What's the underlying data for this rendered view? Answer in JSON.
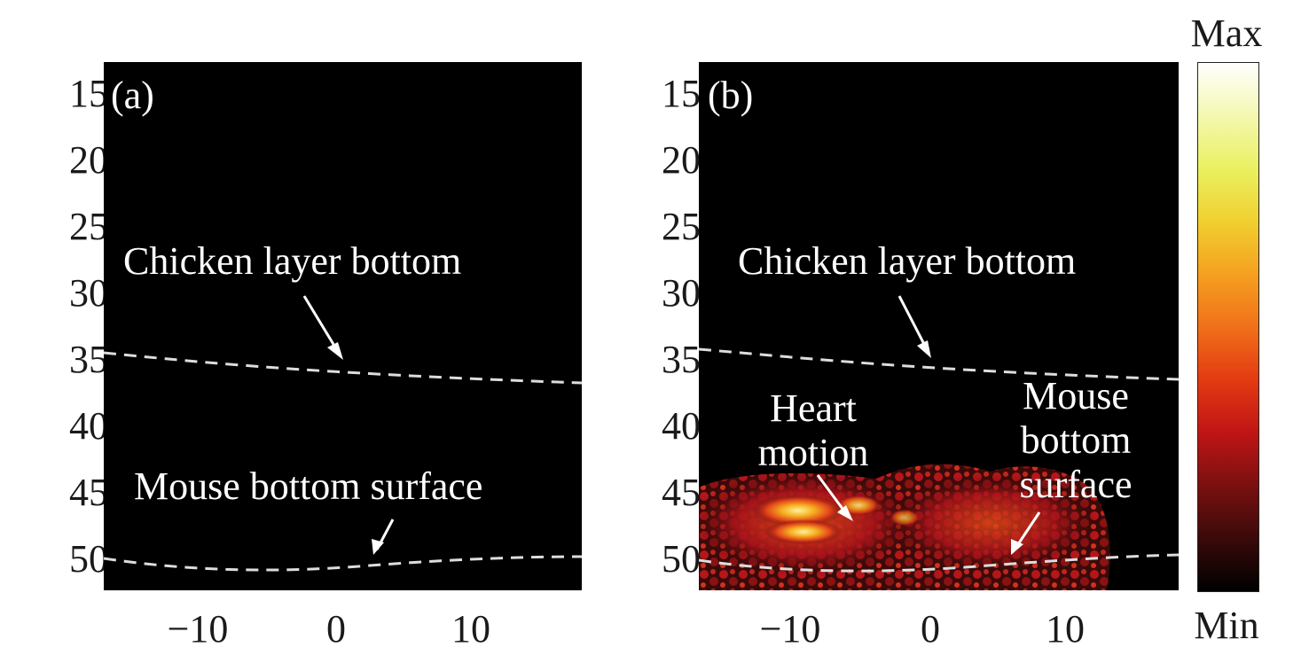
{
  "y_ticks": [
    "15",
    "20",
    "25",
    "30",
    "35",
    "40",
    "45",
    "50"
  ],
  "x_ticks": [
    "−10",
    "0",
    "10"
  ],
  "panel_a": {
    "label": "(a)",
    "annotations": {
      "chicken": "Chicken layer bottom",
      "mouse": "Mouse bottom surface"
    }
  },
  "panel_b": {
    "label": "(b)",
    "annotations": {
      "chicken": "Chicken layer bottom",
      "heart_line1": "Heart",
      "heart_line2": "motion",
      "mouse_line1": "Mouse",
      "mouse_line2": "bottom",
      "mouse_line3": "surface"
    }
  },
  "colorbar": {
    "max_label": "Max",
    "min_label": "Min",
    "colors": [
      "#000000",
      "#3a0a0a",
      "#7a1010",
      "#c01515",
      "#e33a12",
      "#f0701a",
      "#f5a020",
      "#f0d030",
      "#eaf060",
      "#f4f8b0",
      "#ffffff"
    ]
  }
}
